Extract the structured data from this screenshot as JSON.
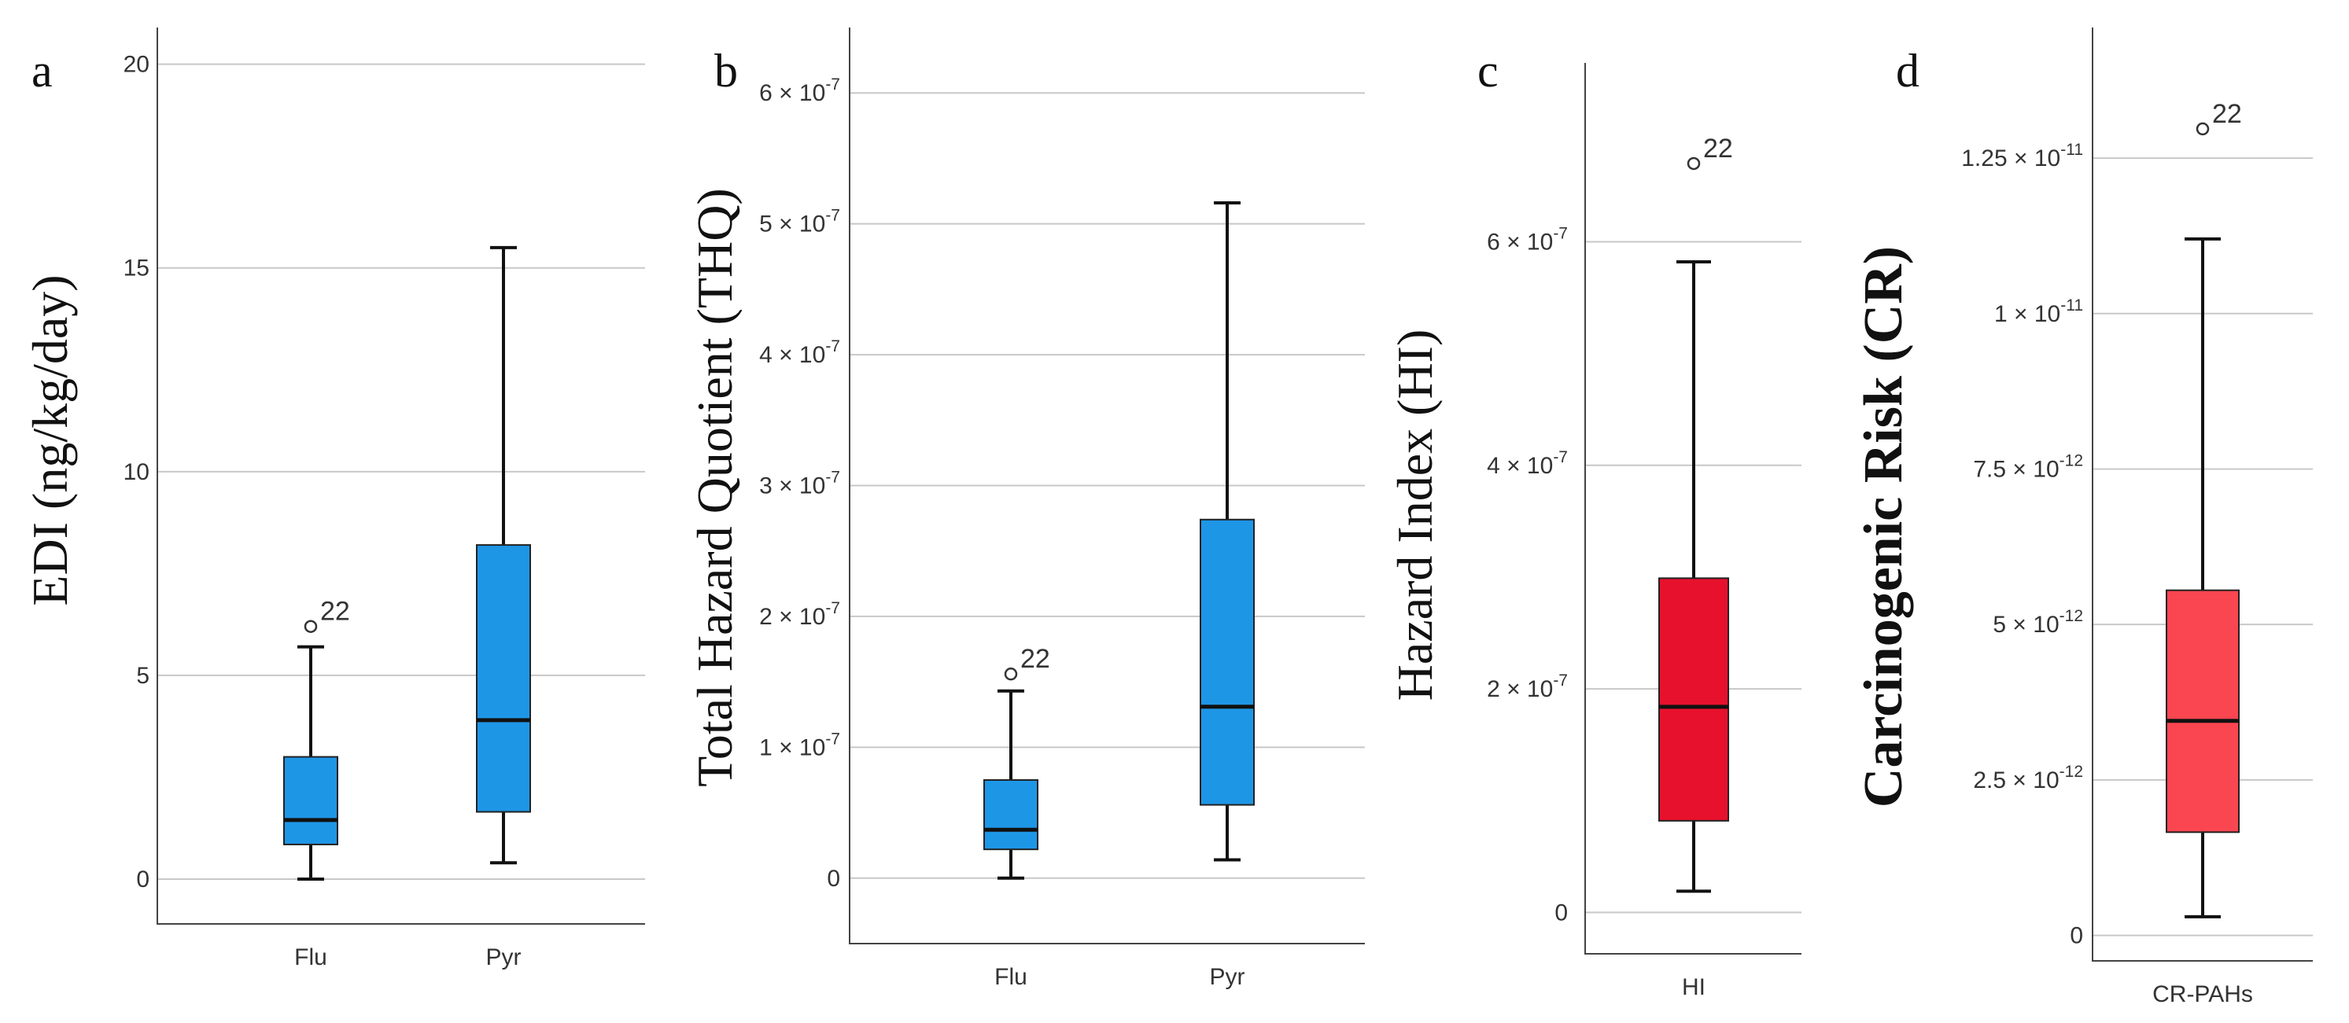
{
  "chart_data": [
    {
      "type": "box",
      "panel": "a",
      "ylabel": "EDI (ng/kg/day)",
      "ylim": [
        -1.1,
        20.9
      ],
      "ticks": [
        {
          "value": 0,
          "label": "0"
        },
        {
          "value": 5,
          "label": "5"
        },
        {
          "value": 10,
          "label": "10"
        },
        {
          "value": 15,
          "label": "15"
        },
        {
          "value": 20,
          "label": "20"
        }
      ],
      "categories": [
        "Flu",
        "Pyr"
      ],
      "boxes": [
        {
          "category": "Flu",
          "min": 0.0,
          "q1": 0.85,
          "median": 1.45,
          "q3": 3.0,
          "max": 5.7,
          "outliers": [
            {
              "value": 6.2,
              "label": "22"
            }
          ],
          "color": "#1e96e6"
        },
        {
          "category": "Pyr",
          "min": 0.4,
          "q1": 1.65,
          "median": 3.9,
          "q3": 8.2,
          "max": 15.5,
          "outliers": [],
          "color": "#1e96e6"
        }
      ]
    },
    {
      "type": "box",
      "panel": "b",
      "ylabel": "Total Hazard Quotient (THQ)",
      "ylim": [
        -0.5,
        6.5
      ],
      "ticks": [
        {
          "value": 0,
          "label": "0"
        },
        {
          "value": 1,
          "label": "1 × 10",
          "exp": "-7"
        },
        {
          "value": 2,
          "label": "2 × 10",
          "exp": "-7"
        },
        {
          "value": 3,
          "label": "3 × 10",
          "exp": "-7"
        },
        {
          "value": 4,
          "label": "4 × 10",
          "exp": "-7"
        },
        {
          "value": 5,
          "label": "5 × 10",
          "exp": "-7"
        },
        {
          "value": 6,
          "label": "6 × 10",
          "exp": "-7"
        }
      ],
      "categories": [
        "Flu",
        "Pyr"
      ],
      "boxes": [
        {
          "category": "Flu",
          "min": 0.0,
          "q1": 0.22,
          "median": 0.37,
          "q3": 0.75,
          "max": 1.43,
          "outliers": [
            {
              "value": 1.56,
              "label": "22"
            }
          ],
          "color": "#1e96e6"
        },
        {
          "category": "Pyr",
          "min": 0.14,
          "q1": 0.56,
          "median": 1.31,
          "q3": 2.74,
          "max": 5.16,
          "outliers": [],
          "color": "#1e96e6"
        }
      ]
    },
    {
      "type": "box",
      "panel": "c",
      "ylabel": "Hazard Index (HI)",
      "ylim": [
        -0.37,
        7.6
      ],
      "ticks": [
        {
          "value": 0,
          "label": "0"
        },
        {
          "value": 2,
          "label": "2 × 10",
          "exp": "-7"
        },
        {
          "value": 4,
          "label": "4 × 10",
          "exp": "-7"
        },
        {
          "value": 6,
          "label": "6 × 10",
          "exp": "-7"
        }
      ],
      "categories": [
        "HI"
      ],
      "boxes": [
        {
          "category": "HI",
          "min": 0.19,
          "q1": 0.82,
          "median": 1.84,
          "q3": 2.99,
          "max": 5.82,
          "outliers": [
            {
              "value": 6.7,
              "label": "22"
            }
          ],
          "color": "#e8112d"
        }
      ]
    },
    {
      "type": "box",
      "panel": "d",
      "ylabel": "Carcinogenic Risk (CR)",
      "ylim": [
        -0.41,
        14.6
      ],
      "ticks": [
        {
          "value": 0,
          "label": "0"
        },
        {
          "value": 2.5,
          "label": "2.5 × 10",
          "exp": "-12"
        },
        {
          "value": 5,
          "label": "5 × 10",
          "exp": "-12"
        },
        {
          "value": 7.5,
          "label": "7.5 × 10",
          "exp": "-12"
        },
        {
          "value": 10,
          "label": "1 × 10",
          "exp": "-11"
        },
        {
          "value": 12.5,
          "label": "1.25 × 10",
          "exp": "-11"
        }
      ],
      "categories": [
        "CR-PAHs"
      ],
      "boxes": [
        {
          "category": "CR-PAHs",
          "min": 0.3,
          "q1": 1.66,
          "median": 3.45,
          "q3": 5.55,
          "max": 11.2,
          "outliers": [
            {
              "value": 12.97,
              "label": "22"
            }
          ],
          "color": "#fa4650"
        }
      ]
    }
  ]
}
